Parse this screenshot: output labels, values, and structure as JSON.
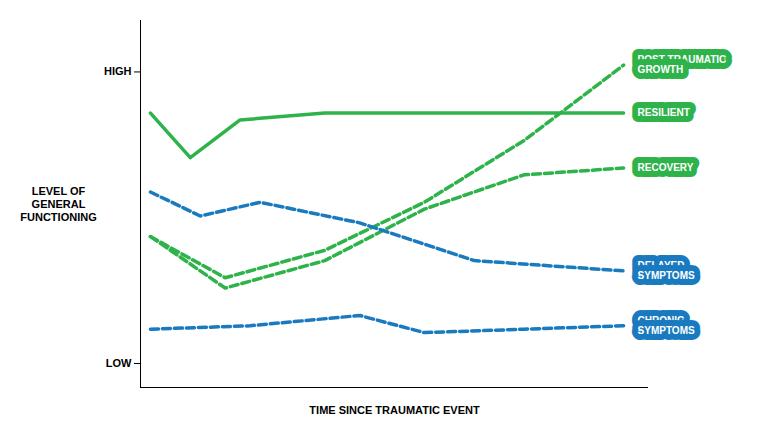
{
  "chart_data": {
    "type": "line",
    "xlabel": "TIME SINCE TRAUMATIC EVENT",
    "ylabel": "LEVEL OF\nGENERAL\nFUNCTIONING",
    "xlim": [
      -0.02,
      1.0
    ],
    "xticks": [],
    "ylim": [
      -0.02,
      1.05
    ],
    "yticks": [
      {
        "value": 0.05,
        "label": "LOW"
      },
      {
        "value": 0.9,
        "label": "HIGH"
      }
    ],
    "tick_labels": "y",
    "grid": false,
    "series": [
      {
        "name": "POST-TRAUMATIC\nGROWTH",
        "color": "#2db34a",
        "line_style": "dashed",
        "x": [
          0,
          0.15,
          0.35,
          0.55,
          0.75,
          0.95
        ],
        "values": [
          0.42,
          0.3,
          0.38,
          0.52,
          0.7,
          0.92
        ]
      },
      {
        "name": "RESILIENT",
        "color": "#2db34a",
        "line_style": "solid",
        "x": [
          0,
          0.08,
          0.18,
          0.35,
          0.95
        ],
        "values": [
          0.78,
          0.65,
          0.76,
          0.78,
          0.78
        ]
      },
      {
        "name": "RECOVERY",
        "color": "#2db34a",
        "line_style": "dashed",
        "x": [
          0,
          0.15,
          0.35,
          0.55,
          0.75,
          0.95
        ],
        "values": [
          0.42,
          0.27,
          0.35,
          0.5,
          0.6,
          0.62
        ]
      },
      {
        "name": "DELAYED\nSYMPTOMS",
        "color": "#1a7abf",
        "line_style": "dashed",
        "x": [
          0,
          0.1,
          0.22,
          0.42,
          0.65,
          0.95
        ],
        "values": [
          0.55,
          0.48,
          0.52,
          0.46,
          0.35,
          0.32
        ]
      },
      {
        "name": "CHRONIC\nSYMPTOMS",
        "color": "#1a7abf",
        "line_style": "dashed",
        "x": [
          0,
          0.2,
          0.42,
          0.55,
          0.75,
          0.95
        ],
        "values": [
          0.15,
          0.16,
          0.19,
          0.14,
          0.15,
          0.16
        ]
      }
    ]
  }
}
